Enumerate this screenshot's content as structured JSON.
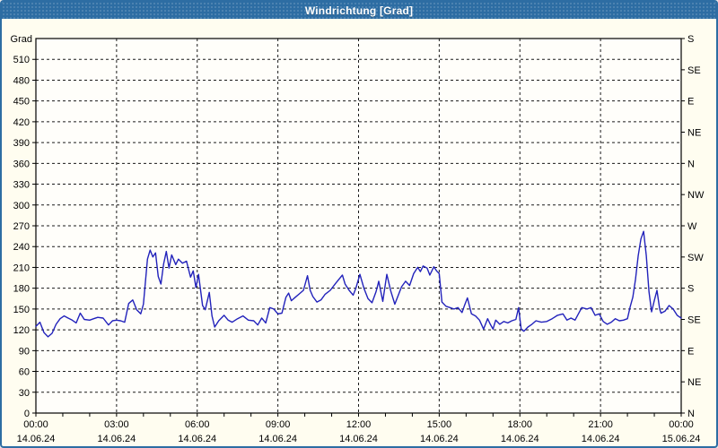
{
  "window": {
    "title": "Windrichtung [Grad]"
  },
  "colors": {
    "titlebar_bg": "#2d6da3",
    "panel_border": "#2d6da3",
    "panel_bg": "#fffdf0",
    "plot_bg": "#fffefa",
    "grid": "#1a1a1a",
    "axis": "#000000",
    "label": "#000000",
    "line": "#2222bb"
  },
  "chart_data": {
    "type": "line",
    "title": "Windrichtung [Grad]",
    "unit_label": "Grad",
    "grid": "dashed",
    "y_left": {
      "min": 0,
      "max": 540,
      "step": 30,
      "top_label": 510
    },
    "y_right_labels": [
      {
        "value": 540,
        "label": "S"
      },
      {
        "value": 495,
        "label": "SE"
      },
      {
        "value": 450,
        "label": "E"
      },
      {
        "value": 405,
        "label": "NE"
      },
      {
        "value": 360,
        "label": "N"
      },
      {
        "value": 315,
        "label": "NW"
      },
      {
        "value": 270,
        "label": "W"
      },
      {
        "value": 225,
        "label": "SW"
      },
      {
        "value": 180,
        "label": "S"
      },
      {
        "value": 135,
        "label": "SE"
      },
      {
        "value": 90,
        "label": "E"
      },
      {
        "value": 45,
        "label": "NE"
      },
      {
        "value": 0,
        "label": "N"
      }
    ],
    "x_axis": {
      "min_hours": 0,
      "max_hours": 24,
      "major_step_hours": 3,
      "minor_step_hours": 1,
      "major_labels": [
        {
          "time": "00:00",
          "date": "14.06.24"
        },
        {
          "time": "03:00",
          "date": "14.06.24"
        },
        {
          "time": "06:00",
          "date": "14.06.24"
        },
        {
          "time": "09:00",
          "date": "14.06.24"
        },
        {
          "time": "12:00",
          "date": "14.06.24"
        },
        {
          "time": "15:00",
          "date": "14.06.24"
        },
        {
          "time": "18:00",
          "date": "14.06.24"
        },
        {
          "time": "21:00",
          "date": "14.06.24"
        },
        {
          "time": "00:00",
          "date": "15.06.24"
        }
      ]
    },
    "series": [
      {
        "name": "Windrichtung",
        "points": [
          [
            0.0,
            125
          ],
          [
            0.15,
            131
          ],
          [
            0.3,
            116
          ],
          [
            0.45,
            110
          ],
          [
            0.6,
            115
          ],
          [
            0.75,
            128
          ],
          [
            0.9,
            136
          ],
          [
            1.05,
            140
          ],
          [
            1.2,
            137
          ],
          [
            1.35,
            134
          ],
          [
            1.5,
            130
          ],
          [
            1.65,
            144
          ],
          [
            1.8,
            135
          ],
          [
            2.0,
            134
          ],
          [
            2.15,
            136
          ],
          [
            2.3,
            138
          ],
          [
            2.5,
            137
          ],
          [
            2.7,
            127
          ],
          [
            2.85,
            133
          ],
          [
            3.0,
            134
          ],
          [
            3.15,
            133
          ],
          [
            3.3,
            131
          ],
          [
            3.45,
            158
          ],
          [
            3.6,
            163
          ],
          [
            3.75,
            149
          ],
          [
            3.9,
            143
          ],
          [
            4.0,
            157
          ],
          [
            4.15,
            222
          ],
          [
            4.25,
            235
          ],
          [
            4.35,
            225
          ],
          [
            4.45,
            231
          ],
          [
            4.55,
            197
          ],
          [
            4.65,
            186
          ],
          [
            4.75,
            215
          ],
          [
            4.85,
            233
          ],
          [
            4.95,
            209
          ],
          [
            5.05,
            228
          ],
          [
            5.2,
            214
          ],
          [
            5.3,
            222
          ],
          [
            5.45,
            216
          ],
          [
            5.6,
            219
          ],
          [
            5.75,
            196
          ],
          [
            5.85,
            205
          ],
          [
            5.95,
            181
          ],
          [
            6.05,
            200
          ],
          [
            6.2,
            155
          ],
          [
            6.3,
            149
          ],
          [
            6.45,
            174
          ],
          [
            6.55,
            140
          ],
          [
            6.65,
            124
          ],
          [
            6.8,
            133
          ],
          [
            7.0,
            141
          ],
          [
            7.15,
            134
          ],
          [
            7.3,
            131
          ],
          [
            7.5,
            136
          ],
          [
            7.7,
            140
          ],
          [
            7.9,
            134
          ],
          [
            8.1,
            133
          ],
          [
            8.25,
            127
          ],
          [
            8.4,
            137
          ],
          [
            8.55,
            130
          ],
          [
            8.7,
            152
          ],
          [
            8.85,
            150
          ],
          [
            9.0,
            143
          ],
          [
            9.15,
            144
          ],
          [
            9.3,
            167
          ],
          [
            9.4,
            173
          ],
          [
            9.5,
            162
          ],
          [
            9.65,
            167
          ],
          [
            9.8,
            172
          ],
          [
            9.95,
            177
          ],
          [
            10.1,
            198
          ],
          [
            10.2,
            177
          ],
          [
            10.3,
            168
          ],
          [
            10.45,
            160
          ],
          [
            10.6,
            163
          ],
          [
            10.75,
            171
          ],
          [
            10.95,
            177
          ],
          [
            11.15,
            187
          ],
          [
            11.4,
            199
          ],
          [
            11.5,
            186
          ],
          [
            11.65,
            177
          ],
          [
            11.8,
            170
          ],
          [
            11.9,
            180
          ],
          [
            12.05,
            200
          ],
          [
            12.2,
            180
          ],
          [
            12.35,
            165
          ],
          [
            12.5,
            159
          ],
          [
            12.65,
            175
          ],
          [
            12.75,
            190
          ],
          [
            12.9,
            161
          ],
          [
            13.05,
            200
          ],
          [
            13.2,
            176
          ],
          [
            13.35,
            157
          ],
          [
            13.6,
            182
          ],
          [
            13.75,
            190
          ],
          [
            13.9,
            184
          ],
          [
            14.05,
            201
          ],
          [
            14.2,
            210
          ],
          [
            14.3,
            204
          ],
          [
            14.4,
            212
          ],
          [
            14.55,
            209
          ],
          [
            14.65,
            199
          ],
          [
            14.8,
            211
          ],
          [
            14.9,
            205
          ],
          [
            15.0,
            201
          ],
          [
            15.1,
            160
          ],
          [
            15.25,
            154
          ],
          [
            15.4,
            152
          ],
          [
            15.55,
            150
          ],
          [
            15.7,
            152
          ],
          [
            15.85,
            145
          ],
          [
            15.95,
            156
          ],
          [
            16.05,
            166
          ],
          [
            16.2,
            143
          ],
          [
            16.35,
            140
          ],
          [
            16.5,
            134
          ],
          [
            16.65,
            121
          ],
          [
            16.8,
            136
          ],
          [
            16.9,
            128
          ],
          [
            17.0,
            121
          ],
          [
            17.1,
            134
          ],
          [
            17.25,
            128
          ],
          [
            17.4,
            132
          ],
          [
            17.55,
            130
          ],
          [
            17.7,
            133
          ],
          [
            17.85,
            135
          ],
          [
            17.95,
            152
          ],
          [
            18.05,
            121
          ],
          [
            18.15,
            118
          ],
          [
            18.3,
            124
          ],
          [
            18.45,
            128
          ],
          [
            18.6,
            133
          ],
          [
            18.8,
            131
          ],
          [
            19.0,
            132
          ],
          [
            19.2,
            136
          ],
          [
            19.4,
            141
          ],
          [
            19.6,
            143
          ],
          [
            19.75,
            134
          ],
          [
            19.9,
            137
          ],
          [
            20.05,
            134
          ],
          [
            20.3,
            152
          ],
          [
            20.5,
            150
          ],
          [
            20.65,
            152
          ],
          [
            20.8,
            141
          ],
          [
            20.95,
            143
          ],
          [
            21.1,
            132
          ],
          [
            21.25,
            128
          ],
          [
            21.4,
            131
          ],
          [
            21.55,
            136
          ],
          [
            21.7,
            133
          ],
          [
            21.85,
            134
          ],
          [
            22.0,
            136
          ],
          [
            22.1,
            153
          ],
          [
            22.2,
            167
          ],
          [
            22.3,
            193
          ],
          [
            22.4,
            227
          ],
          [
            22.5,
            251
          ],
          [
            22.6,
            262
          ],
          [
            22.7,
            227
          ],
          [
            22.8,
            175
          ],
          [
            22.9,
            146
          ],
          [
            23.0,
            162
          ],
          [
            23.1,
            177
          ],
          [
            23.2,
            150
          ],
          [
            23.25,
            144
          ],
          [
            23.4,
            147
          ],
          [
            23.55,
            155
          ],
          [
            23.7,
            150
          ],
          [
            23.85,
            141
          ],
          [
            24.0,
            137
          ]
        ]
      }
    ]
  }
}
